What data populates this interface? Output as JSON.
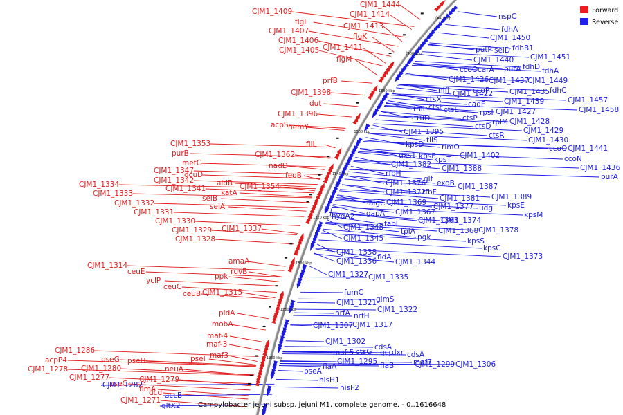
{
  "caption": "Campylobacter jejuni subsp. jejuni M1, complete genome. - 0..1616648",
  "legend": [
    {
      "label": "Forward",
      "color": "#ee1c1c"
    },
    {
      "label": "Reverse",
      "color": "#1f1fee"
    }
  ],
  "colors": {
    "forward": "#e01b1b",
    "reverse": "#1a1ae0",
    "backbone": "#808080"
  },
  "ticks": [
    "1440 kbp",
    "1400 kbp",
    "1380 kbp",
    "1360 kbp",
    "1340 kbp",
    "1320 kbp",
    "1300 kbp",
    "1280 kbp",
    "1260 kbp"
  ],
  "forward_labels": [
    "CJM1_1444",
    "CJM1_1409",
    "CJM1_1414",
    "flgI",
    "CJM1_1413",
    "CJM1_1407",
    "flgK",
    "CJM1_1406",
    "CJM1_1411",
    "CJM1_1405",
    "flgM",
    "prfB",
    "CJM1_1398",
    "dut",
    "CJM1_1396",
    "acpS",
    "hemY",
    "fliL",
    "CJM1_1353",
    "CJM1_1362",
    "purB",
    "metC",
    "nadD",
    "CJM1_1347",
    "dcuD",
    "feoB",
    "CJM1_1342",
    "aldR",
    "CJM1_1354",
    "CJM1_1341",
    "katA",
    "CJM1_1334",
    "selB",
    "CJM1_1333",
    "selA",
    "CJM1_1332",
    "CJM1_1331",
    "CJM1_1337",
    "CJM1_1330",
    "CJM1_1329",
    "CJM1_1328",
    "amaA",
    "CJM1_1314",
    "ruvB",
    "ceuE",
    "ppk",
    "yclP",
    "ceuC",
    "ceuB",
    "CJM1_1315",
    "pldA",
    "mobA",
    "maf-4",
    "maf-3",
    "maf3",
    "CJM1_1286",
    "pseI",
    "acpP4",
    "pseG",
    "pseH",
    "CJM1_1278",
    "CJM1_1280",
    "neuA",
    "CJM1_1277",
    "CJM1_1279",
    "pseC",
    "flmA",
    "dcd",
    "CJM1_1271"
  ],
  "reverse_labels": [
    "nspC",
    "fdhA",
    "CJM1_1450",
    "putP",
    "selD",
    "fdhB1",
    "CJM1_1440",
    "CJM1_1451",
    "putA",
    "fdhD",
    "ccoO",
    "carA",
    "fdhA",
    "CJM1_1426",
    "CJM1_1437",
    "CJM1_1449",
    "nifJ",
    "ccoP",
    "CJM1_1435",
    "fdhC",
    "ctsX",
    "CJM1_1422",
    "CJM1_1439",
    "CJM1_1457",
    "cadF",
    "CJM1_1458",
    "ctsF",
    "ctsE",
    "rpsI",
    "CJM1_1427",
    "thiL",
    "rplM",
    "truD",
    "ctsP",
    "CJM1_1428",
    "ctsD",
    "CJM1_1429",
    "ctsR",
    "CJM1_1395",
    "tilS",
    "CJM1_1430",
    "kpsD",
    "rimO",
    "ccoQ",
    "CJM1_1441",
    "uxs1",
    "kpsF",
    "CJM1_1402",
    "kpsT",
    "ccoN",
    "CJM1_1382",
    "CJM1_1388",
    "CJM1_1436",
    "rfbH",
    "glf",
    "purA",
    "exoB",
    "CJM1_1376",
    "CJM1_1387",
    "CJM1_1372",
    "rfbF",
    "CJM1_1381",
    "CJM1_1389",
    "algC",
    "CJM1_1369",
    "CJM1_1377",
    "udg",
    "kpsE",
    "gapA",
    "CJM1_1367",
    "kpsM",
    "hydA2",
    "fabI",
    "CJM1_1363",
    "CJM1_1374",
    "CJM1_1348",
    "tpiA",
    "CJM1_1368",
    "CJM1_1378",
    "pgk",
    "CJM1_1345",
    "kpsS",
    "kpsC",
    "CJM1_1338",
    "fldA",
    "CJM1_1373",
    "CJM1_1336",
    "CJM1_1344",
    "CJM1_1327",
    "CJM1_1335",
    "fumC",
    "glmS",
    "CJM1_1321",
    "CJM1_1322",
    "nrfA",
    "nrfH",
    "CJM1_1307",
    "CJM1_1317",
    "CJM1_1302",
    "cdsA",
    "maf-5",
    "ctsG",
    "gcp",
    "dxr",
    "cdsA",
    "CJM1_1295",
    "maf7",
    "flaB",
    "CJM1_1299",
    "CJM1_1306",
    "flaA",
    "pseA",
    "hisH1",
    "hisF2",
    "CJM1_1282",
    "accB",
    "gltX2"
  ]
}
